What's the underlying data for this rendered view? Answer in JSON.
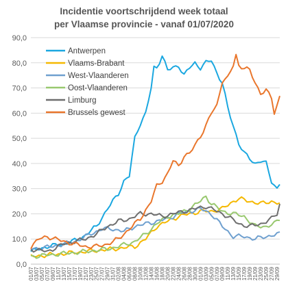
{
  "chart_data": {
    "type": "line",
    "title": "Incidentie voortschrijdend week totaal",
    "subtitle": "per Vlaamse provincie - vanaf 01/07/2020",
    "xlabel": "",
    "ylabel": "",
    "ylim": [
      0,
      90
    ],
    "yticks": [
      "0,0",
      "10,0",
      "20,0",
      "30,0",
      "40,0",
      "50,0",
      "60,0",
      "70,0",
      "80,0",
      "90,0"
    ],
    "grid": "horizontal",
    "legend_position": "top-left",
    "x_start": "01/07",
    "x_end": "30/09",
    "x_tick_step_days": 2,
    "num_days": 92,
    "series": [
      {
        "name": "Antwerpen",
        "color": "#1aa7e0",
        "keypoints": [
          [
            0,
            5
          ],
          [
            6,
            7
          ],
          [
            12,
            8
          ],
          [
            18,
            10
          ],
          [
            24,
            15
          ],
          [
            28,
            22
          ],
          [
            32,
            28
          ],
          [
            34,
            33
          ],
          [
            36,
            35
          ],
          [
            38,
            50
          ],
          [
            40,
            56
          ],
          [
            42,
            60
          ],
          [
            44,
            70
          ],
          [
            45,
            78
          ],
          [
            46,
            78
          ],
          [
            48,
            83
          ],
          [
            50,
            77
          ],
          [
            52,
            78
          ],
          [
            54,
            79
          ],
          [
            56,
            75
          ],
          [
            58,
            78
          ],
          [
            60,
            80
          ],
          [
            62,
            78
          ],
          [
            64,
            80
          ],
          [
            66,
            81
          ],
          [
            68,
            76
          ],
          [
            70,
            72
          ],
          [
            72,
            62
          ],
          [
            74,
            55
          ],
          [
            76,
            48
          ],
          [
            78,
            44
          ],
          [
            80,
            42
          ],
          [
            82,
            40
          ],
          [
            84,
            41
          ],
          [
            86,
            40
          ],
          [
            88,
            33
          ],
          [
            90,
            30
          ],
          [
            91,
            32
          ]
        ]
      },
      {
        "name": "Vlaams-Brabant",
        "color": "#f5b800",
        "keypoints": [
          [
            0,
            3
          ],
          [
            10,
            4
          ],
          [
            20,
            5
          ],
          [
            30,
            6
          ],
          [
            38,
            7
          ],
          [
            42,
            10
          ],
          [
            46,
            15
          ],
          [
            50,
            17
          ],
          [
            54,
            19
          ],
          [
            58,
            20
          ],
          [
            62,
            21
          ],
          [
            66,
            21
          ],
          [
            70,
            22
          ],
          [
            74,
            25
          ],
          [
            76,
            26
          ],
          [
            80,
            25
          ],
          [
            84,
            24
          ],
          [
            88,
            25
          ],
          [
            91,
            24
          ]
        ]
      },
      {
        "name": "West-Vlaanderen",
        "color": "#6fa0cf",
        "keypoints": [
          [
            0,
            6
          ],
          [
            8,
            7
          ],
          [
            16,
            9
          ],
          [
            22,
            12
          ],
          [
            26,
            14
          ],
          [
            30,
            14
          ],
          [
            34,
            13
          ],
          [
            38,
            15
          ],
          [
            42,
            16
          ],
          [
            46,
            17
          ],
          [
            50,
            18
          ],
          [
            54,
            20
          ],
          [
            58,
            21
          ],
          [
            62,
            22
          ],
          [
            66,
            20
          ],
          [
            70,
            15
          ],
          [
            74,
            11
          ],
          [
            78,
            11
          ],
          [
            82,
            10
          ],
          [
            86,
            11
          ],
          [
            91,
            12
          ]
        ]
      },
      {
        "name": "Oost-Vlaanderen",
        "color": "#98c86e",
        "keypoints": [
          [
            0,
            3
          ],
          [
            10,
            4
          ],
          [
            20,
            5
          ],
          [
            28,
            6
          ],
          [
            32,
            7
          ],
          [
            38,
            9
          ],
          [
            42,
            12
          ],
          [
            46,
            16
          ],
          [
            50,
            19
          ],
          [
            54,
            20
          ],
          [
            58,
            22
          ],
          [
            62,
            25
          ],
          [
            64,
            27
          ],
          [
            66,
            24
          ],
          [
            70,
            21
          ],
          [
            74,
            20
          ],
          [
            78,
            19
          ],
          [
            82,
            15
          ],
          [
            86,
            15
          ],
          [
            89,
            16
          ],
          [
            91,
            18
          ]
        ]
      },
      {
        "name": "Limburg",
        "color": "#6e6e6e",
        "keypoints": [
          [
            0,
            6
          ],
          [
            6,
            5
          ],
          [
            12,
            8
          ],
          [
            16,
            9
          ],
          [
            20,
            10
          ],
          [
            24,
            12
          ],
          [
            28,
            15
          ],
          [
            32,
            17
          ],
          [
            36,
            18
          ],
          [
            40,
            20
          ],
          [
            44,
            20
          ],
          [
            48,
            19
          ],
          [
            52,
            20
          ],
          [
            56,
            21
          ],
          [
            60,
            22
          ],
          [
            64,
            23
          ],
          [
            68,
            21
          ],
          [
            72,
            19
          ],
          [
            76,
            16
          ],
          [
            80,
            15
          ],
          [
            84,
            16
          ],
          [
            88,
            18
          ],
          [
            90,
            20
          ],
          [
            91,
            24
          ]
        ]
      },
      {
        "name": "Brussels gewest",
        "color": "#e9762c",
        "keypoints": [
          [
            0,
            7
          ],
          [
            3,
            10
          ],
          [
            6,
            11
          ],
          [
            9,
            10
          ],
          [
            12,
            9
          ],
          [
            16,
            8
          ],
          [
            20,
            7
          ],
          [
            24,
            7
          ],
          [
            28,
            8
          ],
          [
            32,
            10
          ],
          [
            36,
            14
          ],
          [
            40,
            18
          ],
          [
            44,
            25
          ],
          [
            46,
            31
          ],
          [
            48,
            33
          ],
          [
            50,
            36
          ],
          [
            52,
            41
          ],
          [
            54,
            39
          ],
          [
            56,
            43
          ],
          [
            58,
            44
          ],
          [
            60,
            47
          ],
          [
            62,
            51
          ],
          [
            64,
            55
          ],
          [
            66,
            60
          ],
          [
            68,
            63
          ],
          [
            70,
            73
          ],
          [
            72,
            74
          ],
          [
            74,
            79
          ],
          [
            75,
            83
          ],
          [
            76,
            79
          ],
          [
            78,
            78
          ],
          [
            80,
            77
          ],
          [
            82,
            72
          ],
          [
            84,
            68
          ],
          [
            86,
            69
          ],
          [
            88,
            66
          ],
          [
            89,
            60
          ],
          [
            90,
            63
          ],
          [
            91,
            67
          ]
        ]
      }
    ]
  }
}
